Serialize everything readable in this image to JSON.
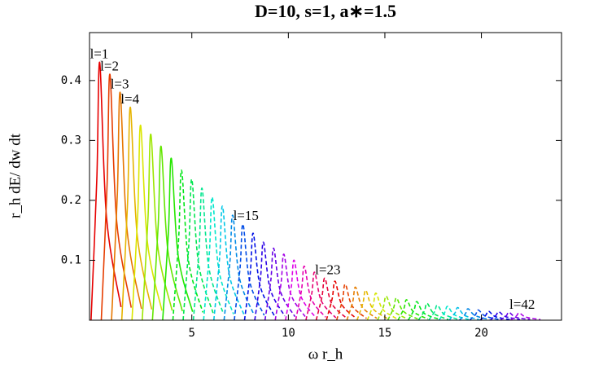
{
  "chart_data": {
    "type": "line",
    "title": "D=10, s=1, a∗=1.5",
    "xlabel": "ω r_h",
    "ylabel": "r_h dE/ dw dt",
    "xlim": [
      -0.3,
      24.15
    ],
    "ylim": [
      0,
      0.48
    ],
    "xticks": [
      5,
      10,
      15,
      20
    ],
    "yticks": [
      0.1,
      0.2,
      0.3,
      0.4
    ],
    "grid": false,
    "series": [
      {
        "name": "l=1",
        "color": "hsl(0,100%,45%)",
        "dashed": false,
        "x": [
          -0.22,
          0.08,
          0.23,
          0.58,
          1.33
        ],
        "values": [
          0,
          0.237,
          0.43,
          0.172,
          0.022
        ]
      },
      {
        "name": "l=2",
        "color": "hsl(16,100%,45%)",
        "dashed": false,
        "x": [
          0.31,
          0.61,
          0.76,
          1.11,
          1.86
        ],
        "values": [
          0,
          0.226,
          0.41,
          0.164,
          0.021
        ]
      },
      {
        "name": "l=3",
        "color": "hsl(31,100%,45%)",
        "dashed": false,
        "x": [
          0.84,
          1.14,
          1.29,
          1.64,
          2.39
        ],
        "values": [
          0,
          0.209,
          0.38,
          0.152,
          0.019
        ]
      },
      {
        "name": "l=4",
        "color": "hsl(47,100%,45%)",
        "dashed": false,
        "x": [
          1.37,
          1.67,
          1.82,
          2.17,
          2.92
        ],
        "values": [
          0,
          0.195,
          0.355,
          0.142,
          0.018
        ]
      },
      {
        "color": "hsl(63,100%,45%)",
        "dashed": false,
        "x": [
          1.9,
          2.2,
          2.35,
          2.7,
          3.45
        ],
        "values": [
          0,
          0.179,
          0.325,
          0.13,
          0.016
        ]
      },
      {
        "color": "hsl(79,100%,45%)",
        "dashed": false,
        "x": [
          2.43,
          2.73,
          2.88,
          3.23,
          3.98
        ],
        "values": [
          0,
          0.171,
          0.31,
          0.124,
          0.016
        ]
      },
      {
        "color": "hsl(94,100%,45%)",
        "dashed": false,
        "x": [
          2.96,
          3.26,
          3.41,
          3.76,
          4.51
        ],
        "values": [
          0,
          0.16,
          0.29,
          0.116,
          0.015
        ]
      },
      {
        "color": "hsl(110,100%,45%)",
        "dashed": false,
        "x": [
          3.49,
          3.79,
          3.94,
          4.29,
          5.04
        ],
        "values": [
          0,
          0.149,
          0.27,
          0.108,
          0.014
        ]
      },
      {
        "color": "hsl(126,100%,45%)",
        "dashed": true,
        "x": [
          4.02,
          4.32,
          4.47,
          4.82,
          5.57
        ],
        "values": [
          0,
          0.138,
          0.25,
          0.1,
          0.013
        ]
      },
      {
        "color": "hsl(141,100%,45%)",
        "dashed": true,
        "x": [
          4.55,
          4.85,
          5,
          5.35,
          6.1
        ],
        "values": [
          0,
          0.129,
          0.235,
          0.094,
          0.012
        ]
      },
      {
        "color": "hsl(157,100%,45%)",
        "dashed": true,
        "x": [
          5.08,
          5.38,
          5.53,
          5.88,
          6.63
        ],
        "values": [
          0,
          0.121,
          0.22,
          0.088,
          0.011
        ]
      },
      {
        "color": "hsl(173,100%,45%)",
        "dashed": true,
        "x": [
          5.61,
          5.91,
          6.06,
          6.41,
          7.16
        ],
        "values": [
          0,
          0.113,
          0.205,
          0.082,
          0.01
        ]
      },
      {
        "color": "hsl(188,100%,45%)",
        "dashed": true,
        "x": [
          6.14,
          6.44,
          6.59,
          6.94,
          7.69
        ],
        "values": [
          0,
          0.105,
          0.19,
          0.076,
          0.01
        ]
      },
      {
        "color": "hsl(204,100%,45%)",
        "dashed": true,
        "x": [
          6.67,
          6.97,
          7.12,
          7.47,
          8.22
        ],
        "values": [
          0,
          0.096,
          0.175,
          0.07,
          0.009
        ]
      },
      {
        "name": "l=15",
        "color": "hsl(220,100%,45%)",
        "dashed": true,
        "x": [
          7.2,
          7.5,
          7.65,
          8,
          8.75
        ],
        "values": [
          0,
          0.088,
          0.16,
          0.064,
          0.008
        ]
      },
      {
        "color": "hsl(236,100%,45%)",
        "dashed": true,
        "x": [
          7.73,
          8.03,
          8.18,
          8.53,
          9.28
        ],
        "values": [
          0,
          0.08,
          0.145,
          0.058,
          0.007
        ]
      },
      {
        "color": "hsl(251,100%,45%)",
        "dashed": true,
        "x": [
          8.26,
          8.56,
          8.71,
          9.06,
          9.81
        ],
        "values": [
          0,
          0.072,
          0.13,
          0.052,
          0.007
        ]
      },
      {
        "color": "hsl(267,100%,45%)",
        "dashed": true,
        "x": [
          8.79,
          9.09,
          9.24,
          9.59,
          10.34
        ],
        "values": [
          0,
          0.066,
          0.12,
          0.048,
          0.006
        ]
      },
      {
        "color": "hsl(283,100%,45%)",
        "dashed": true,
        "x": [
          9.32,
          9.62,
          9.77,
          10.12,
          10.87
        ],
        "values": [
          0,
          0.061,
          0.11,
          0.044,
          0.006
        ]
      },
      {
        "color": "hsl(298,100%,45%)",
        "dashed": true,
        "x": [
          9.85,
          10.15,
          10.3,
          10.65,
          11.4
        ],
        "values": [
          0,
          0.055,
          0.1,
          0.04,
          0.005
        ]
      },
      {
        "color": "hsl(314,100%,45%)",
        "dashed": true,
        "x": [
          10.38,
          10.68,
          10.83,
          11.18,
          11.93
        ],
        "values": [
          0,
          0.05,
          0.09,
          0.036,
          0.005
        ]
      },
      {
        "color": "hsl(330,100%,45%)",
        "dashed": true,
        "x": [
          10.91,
          11.21,
          11.36,
          11.71,
          12.46
        ],
        "values": [
          0,
          0.044,
          0.08,
          0.032,
          0.004
        ]
      },
      {
        "name": "l=23",
        "color": "hsl(345,100%,45%)",
        "dashed": true,
        "x": [
          11.44,
          11.74,
          11.89,
          12.24,
          12.99
        ],
        "values": [
          0,
          0.039,
          0.07,
          0.028,
          0.004
        ]
      },
      {
        "color": "hsl(1,100%,45%)",
        "dashed": true,
        "x": [
          11.97,
          12.27,
          12.42,
          12.77,
          13.52
        ],
        "values": [
          0,
          0.036,
          0.065,
          0.026,
          0.003
        ]
      },
      {
        "color": "hsl(17,100%,45%)",
        "dashed": true,
        "x": [
          12.5,
          12.8,
          12.95,
          13.3,
          14.05
        ],
        "values": [
          0,
          0.033,
          0.06,
          0.024,
          0.003
        ]
      },
      {
        "color": "hsl(33,100%,45%)",
        "dashed": true,
        "x": [
          13.03,
          13.33,
          13.48,
          13.83,
          14.58
        ],
        "values": [
          0,
          0.03,
          0.055,
          0.022,
          0.003
        ]
      },
      {
        "color": "hsl(48,100%,45%)",
        "dashed": true,
        "x": [
          13.56,
          13.86,
          14.01,
          14.36,
          15.11
        ],
        "values": [
          0,
          0.028,
          0.05,
          0.02,
          0.003
        ]
      },
      {
        "color": "hsl(64,100%,45%)",
        "dashed": true,
        "x": [
          14.09,
          14.39,
          14.54,
          14.89,
          15.64
        ],
        "values": [
          0,
          0.025,
          0.045,
          0.018,
          0.002
        ]
      },
      {
        "color": "hsl(80,100%,45%)",
        "dashed": true,
        "x": [
          14.62,
          14.92,
          15.07,
          15.42,
          16.17
        ],
        "values": [
          0,
          0.022,
          0.04,
          0.016,
          0.002
        ]
      },
      {
        "color": "hsl(95,100%,45%)",
        "dashed": true,
        "x": [
          15.15,
          15.45,
          15.6,
          15.95,
          16.7
        ],
        "values": [
          0,
          0.02,
          0.037,
          0.015,
          0.002
        ]
      },
      {
        "color": "hsl(111,100%,45%)",
        "dashed": true,
        "x": [
          15.68,
          15.98,
          16.13,
          16.48,
          17.23
        ],
        "values": [
          0,
          0.019,
          0.034,
          0.014,
          0.002
        ]
      },
      {
        "color": "hsl(127,100%,45%)",
        "dashed": true,
        "x": [
          16.21,
          16.51,
          16.66,
          17.01,
          17.76
        ],
        "values": [
          0,
          0.017,
          0.031,
          0.012,
          0.002
        ]
      },
      {
        "color": "hsl(142,100%,45%)",
        "dashed": true,
        "x": [
          16.74,
          17.04,
          17.19,
          17.54,
          18.29
        ],
        "values": [
          0,
          0.015,
          0.028,
          0.011,
          0.001
        ]
      },
      {
        "color": "hsl(158,100%,45%)",
        "dashed": true,
        "x": [
          17.27,
          17.57,
          17.72,
          18.07,
          18.82
        ],
        "values": [
          0,
          0.014,
          0.025,
          0.01,
          0.001
        ]
      },
      {
        "color": "hsl(174,100%,45%)",
        "dashed": true,
        "x": [
          17.8,
          18.1,
          18.25,
          18.6,
          19.35
        ],
        "values": [
          0,
          0.013,
          0.023,
          0.009,
          0.001
        ]
      },
      {
        "color": "hsl(190,100%,45%)",
        "dashed": true,
        "x": [
          18.33,
          18.63,
          18.78,
          19.13,
          19.88
        ],
        "values": [
          0,
          0.012,
          0.021,
          0.008,
          0.001
        ]
      },
      {
        "color": "hsl(205,100%,45%)",
        "dashed": true,
        "x": [
          18.86,
          19.16,
          19.31,
          19.66,
          20.41
        ],
        "values": [
          0,
          0.01,
          0.019,
          0.008,
          0.001
        ]
      },
      {
        "color": "hsl(221,100%,45%)",
        "dashed": true,
        "x": [
          19.39,
          19.69,
          19.84,
          20.19,
          20.94
        ],
        "values": [
          0,
          0.009,
          0.017,
          0.007,
          0.001
        ]
      },
      {
        "color": "hsl(237,100%,45%)",
        "dashed": true,
        "x": [
          19.92,
          20.22,
          20.37,
          20.72,
          21.47
        ],
        "values": [
          0,
          0.008,
          0.015,
          0.006,
          0.001
        ]
      },
      {
        "color": "hsl(252,100%,45%)",
        "dashed": true,
        "x": [
          20.45,
          20.75,
          20.9,
          21.25,
          22
        ],
        "values": [
          0,
          0.008,
          0.014,
          0.006,
          0.001
        ]
      },
      {
        "color": "hsl(268,100%,45%)",
        "dashed": true,
        "x": [
          20.98,
          21.28,
          21.43,
          21.78,
          22.53
        ],
        "values": [
          0,
          0.007,
          0.013,
          0.005,
          0.001
        ]
      },
      {
        "name": "l=42",
        "color": "hsl(284,100%,45%)",
        "dashed": true,
        "x": [
          21.51,
          21.81,
          21.96,
          22.31,
          23.06
        ],
        "values": [
          0,
          0.007,
          0.012,
          0.005,
          0.001
        ]
      }
    ]
  }
}
